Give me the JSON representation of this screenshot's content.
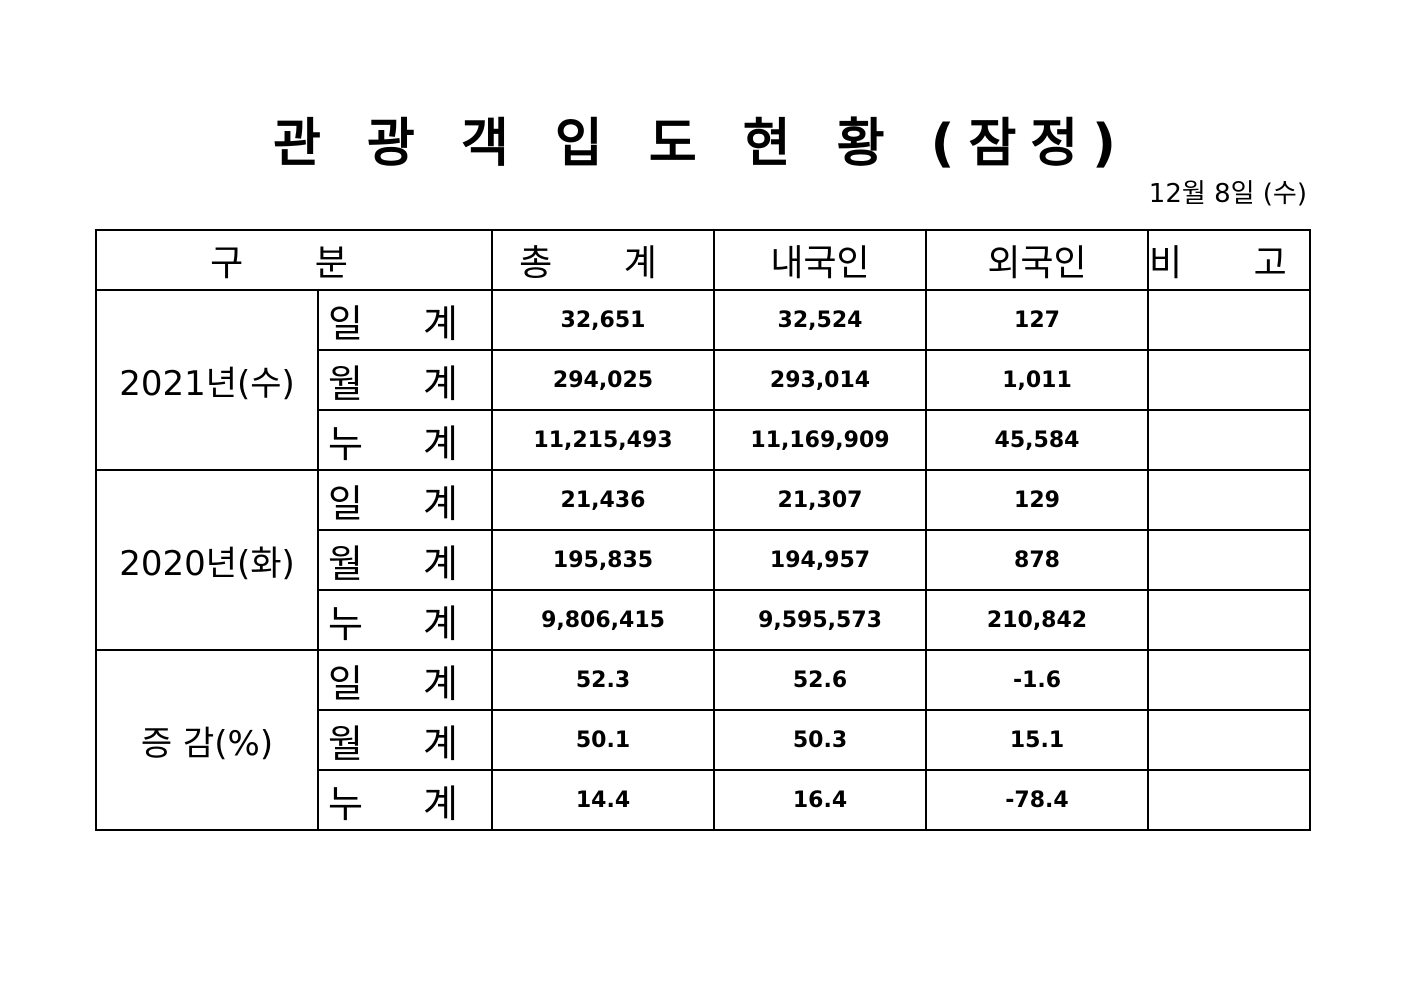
{
  "document": {
    "title": "관 광 객 입 도 현 황 (잠정)",
    "date": "12월  8일  (수)"
  },
  "table": {
    "headers": [
      "구  분",
      "총  계",
      "내국인",
      "외국인",
      "비  고"
    ],
    "groups": [
      {
        "label": "2021년(수)",
        "rows": [
          {
            "sub": "일 계",
            "total": "32,651",
            "domestic": "32,524",
            "foreign": "127",
            "note": ""
          },
          {
            "sub": "월 계",
            "total": "294,025",
            "domestic": "293,014",
            "foreign": "1,011",
            "note": ""
          },
          {
            "sub": "누 계",
            "total": "11,215,493",
            "domestic": "11,169,909",
            "foreign": "45,584",
            "note": ""
          }
        ]
      },
      {
        "label": "2020년(화)",
        "rows": [
          {
            "sub": "일 계",
            "total": "21,436",
            "domestic": "21,307",
            "foreign": "129",
            "note": ""
          },
          {
            "sub": "월 계",
            "total": "195,835",
            "domestic": "194,957",
            "foreign": "878",
            "note": ""
          },
          {
            "sub": "누 계",
            "total": "9,806,415",
            "domestic": "9,595,573",
            "foreign": "210,842",
            "note": ""
          }
        ]
      },
      {
        "label": "증  감(%)",
        "rows": [
          {
            "sub": "일 계",
            "total": "52.3",
            "domestic": "52.6",
            "foreign": "-1.6",
            "note": ""
          },
          {
            "sub": "월 계",
            "total": "50.1",
            "domestic": "50.3",
            "foreign": "15.1",
            "note": ""
          },
          {
            "sub": "누 계",
            "total": "14.4",
            "domestic": "16.4",
            "foreign": "-78.4",
            "note": ""
          }
        ]
      }
    ]
  }
}
